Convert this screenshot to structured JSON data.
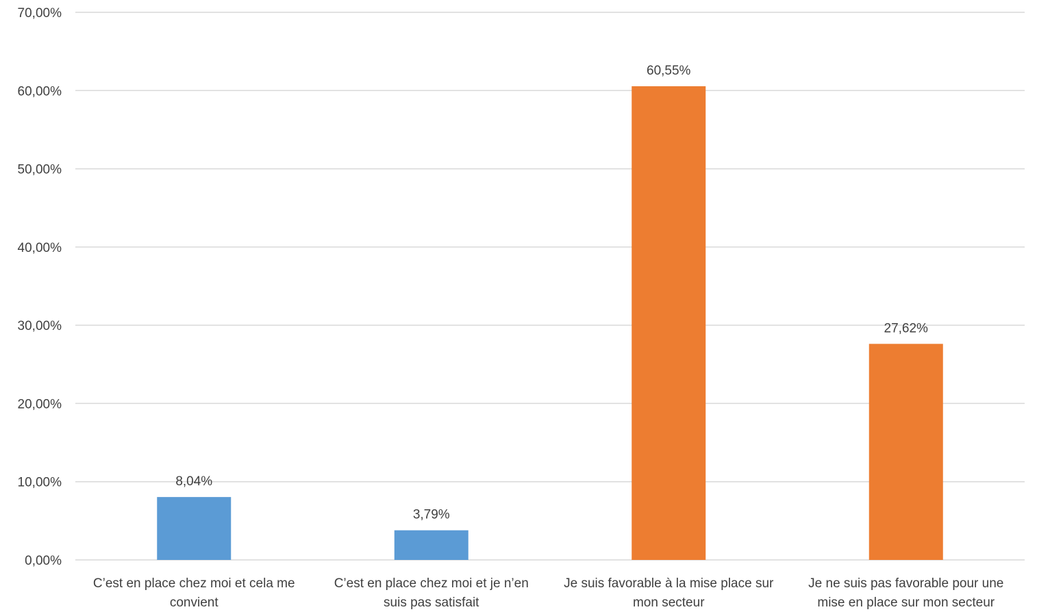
{
  "chart_data": {
    "type": "bar",
    "title": "",
    "xlabel": "",
    "ylabel": "",
    "ylim": [
      0,
      70
    ],
    "yticks": [
      "0,00%",
      "10,00%",
      "20,00%",
      "30,00%",
      "40,00%",
      "50,00%",
      "60,00%",
      "70,00%"
    ],
    "grid": true,
    "legend": "none",
    "categories": [
      [
        "C’est en place chez moi et cela me",
        "convient"
      ],
      [
        "C’est en place chez moi et je n’en",
        "suis pas satisfait"
      ],
      [
        "Je suis favorable à la mise place sur",
        "mon secteur"
      ],
      [
        "Je ne suis pas favorable pour une",
        "mise en place sur mon secteur"
      ]
    ],
    "values": [
      8.04,
      3.79,
      60.55,
      27.62
    ],
    "data_labels": [
      "8,04%",
      "3,79%",
      "60,55%",
      "27,62%"
    ],
    "bar_colors": [
      "#5b9bd5",
      "#5b9bd5",
      "#ed7d31",
      "#ed7d31"
    ],
    "grid_color": "#d9d9d9",
    "text_color": "#404040"
  }
}
